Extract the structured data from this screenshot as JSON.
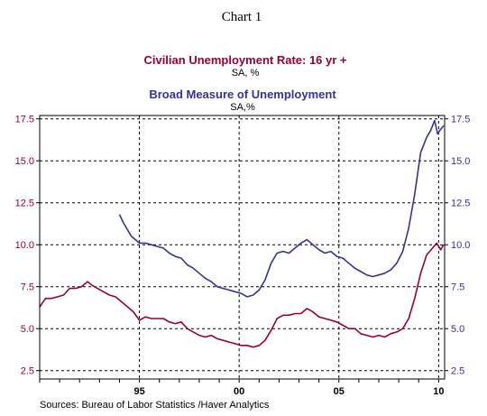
{
  "chart_data": {
    "type": "line",
    "title": "Chart 1",
    "source": "Sources:  Bureau of Labor Statistics /Haver Analytics",
    "ylim": [
      2.0,
      17.7
    ],
    "yticks": [
      "17.5",
      "15.0",
      "12.5",
      "10.0",
      "7.5",
      "5.0",
      "2.5"
    ],
    "ytick_values": [
      17.5,
      15.0,
      12.5,
      10.0,
      7.5,
      5.0,
      2.5
    ],
    "xlim": [
      1990.0,
      2010.3
    ],
    "xticks": [
      "95",
      "00",
      "05",
      "10"
    ],
    "xtick_values": [
      1995,
      2000,
      2005,
      2010
    ],
    "grid": true,
    "colors": {
      "youth": "#990033",
      "broad": "#333399",
      "text_left": "#990033",
      "text_right": "#333399"
    },
    "series": [
      {
        "name": "Civilian Unemployment Rate: 16 yr +",
        "units": "SA, %",
        "color": "#990033",
        "x": [
          1990.0,
          1990.3,
          1990.6,
          1990.9,
          1991.2,
          1991.5,
          1991.8,
          1992.1,
          1992.4,
          1992.6,
          1992.9,
          1993.2,
          1993.5,
          1993.8,
          1994.1,
          1994.4,
          1994.7,
          1995.0,
          1995.3,
          1995.6,
          1995.9,
          1996.2,
          1996.5,
          1996.8,
          1997.1,
          1997.4,
          1997.7,
          1998.0,
          1998.3,
          1998.6,
          1998.9,
          1999.2,
          1999.5,
          1999.8,
          2000.1,
          2000.4,
          2000.7,
          2001.0,
          2001.3,
          2001.6,
          2001.9,
          2002.2,
          2002.5,
          2002.8,
          2003.1,
          2003.4,
          2003.7,
          2004.0,
          2004.3,
          2004.6,
          2004.9,
          2005.2,
          2005.5,
          2005.8,
          2006.1,
          2006.4,
          2006.7,
          2007.0,
          2007.3,
          2007.6,
          2007.9,
          2008.2,
          2008.5,
          2008.8,
          2009.1,
          2009.4,
          2009.7,
          2009.9,
          2010.1,
          2010.25
        ],
        "values": [
          6.3,
          6.8,
          6.8,
          6.9,
          7.0,
          7.4,
          7.4,
          7.5,
          7.8,
          7.6,
          7.4,
          7.2,
          7.0,
          6.9,
          6.6,
          6.3,
          6.0,
          5.5,
          5.7,
          5.6,
          5.6,
          5.6,
          5.4,
          5.3,
          5.4,
          5.0,
          4.8,
          4.6,
          4.5,
          4.6,
          4.4,
          4.3,
          4.2,
          4.1,
          4.0,
          4.0,
          3.9,
          4.0,
          4.3,
          4.9,
          5.6,
          5.8,
          5.8,
          5.9,
          5.9,
          6.2,
          6.0,
          5.7,
          5.6,
          5.5,
          5.4,
          5.2,
          5.0,
          5.0,
          4.7,
          4.6,
          4.5,
          4.6,
          4.5,
          4.7,
          4.8,
          5.0,
          5.6,
          6.8,
          8.3,
          9.4,
          9.8,
          10.1,
          9.7,
          10.0
        ]
      },
      {
        "name": "Broad Measure of Unemployment",
        "units": "SA,%",
        "color": "#333399",
        "x": [
          1994.0,
          1994.2,
          1994.4,
          1994.6,
          1994.8,
          1995.0,
          1995.3,
          1995.6,
          1995.9,
          1996.2,
          1996.5,
          1996.8,
          1997.1,
          1997.4,
          1997.7,
          1998.0,
          1998.3,
          1998.6,
          1998.9,
          1999.2,
          1999.5,
          1999.8,
          2000.1,
          2000.4,
          2000.7,
          2001.0,
          2001.3,
          2001.6,
          2001.9,
          2002.2,
          2002.5,
          2002.8,
          2003.1,
          2003.4,
          2003.7,
          2004.0,
          2004.3,
          2004.6,
          2004.9,
          2005.2,
          2005.5,
          2005.8,
          2006.1,
          2006.4,
          2006.7,
          2007.0,
          2007.3,
          2007.6,
          2007.9,
          2008.2,
          2008.5,
          2008.8,
          2009.1,
          2009.4,
          2009.6,
          2009.8,
          2009.95,
          2010.05,
          2010.25
        ],
        "values": [
          11.8,
          11.3,
          10.9,
          10.5,
          10.3,
          10.1,
          10.1,
          10.0,
          9.9,
          9.8,
          9.5,
          9.3,
          9.2,
          8.8,
          8.6,
          8.3,
          8.0,
          7.8,
          7.5,
          7.4,
          7.3,
          7.2,
          7.1,
          6.9,
          7.0,
          7.3,
          7.9,
          8.9,
          9.5,
          9.6,
          9.5,
          9.8,
          10.1,
          10.3,
          10.0,
          9.7,
          9.5,
          9.6,
          9.3,
          9.2,
          8.9,
          8.6,
          8.4,
          8.2,
          8.1,
          8.2,
          8.3,
          8.5,
          8.9,
          9.6,
          11.0,
          13.0,
          15.5,
          16.4,
          16.8,
          17.4,
          16.6,
          16.8,
          17.1
        ]
      }
    ]
  }
}
